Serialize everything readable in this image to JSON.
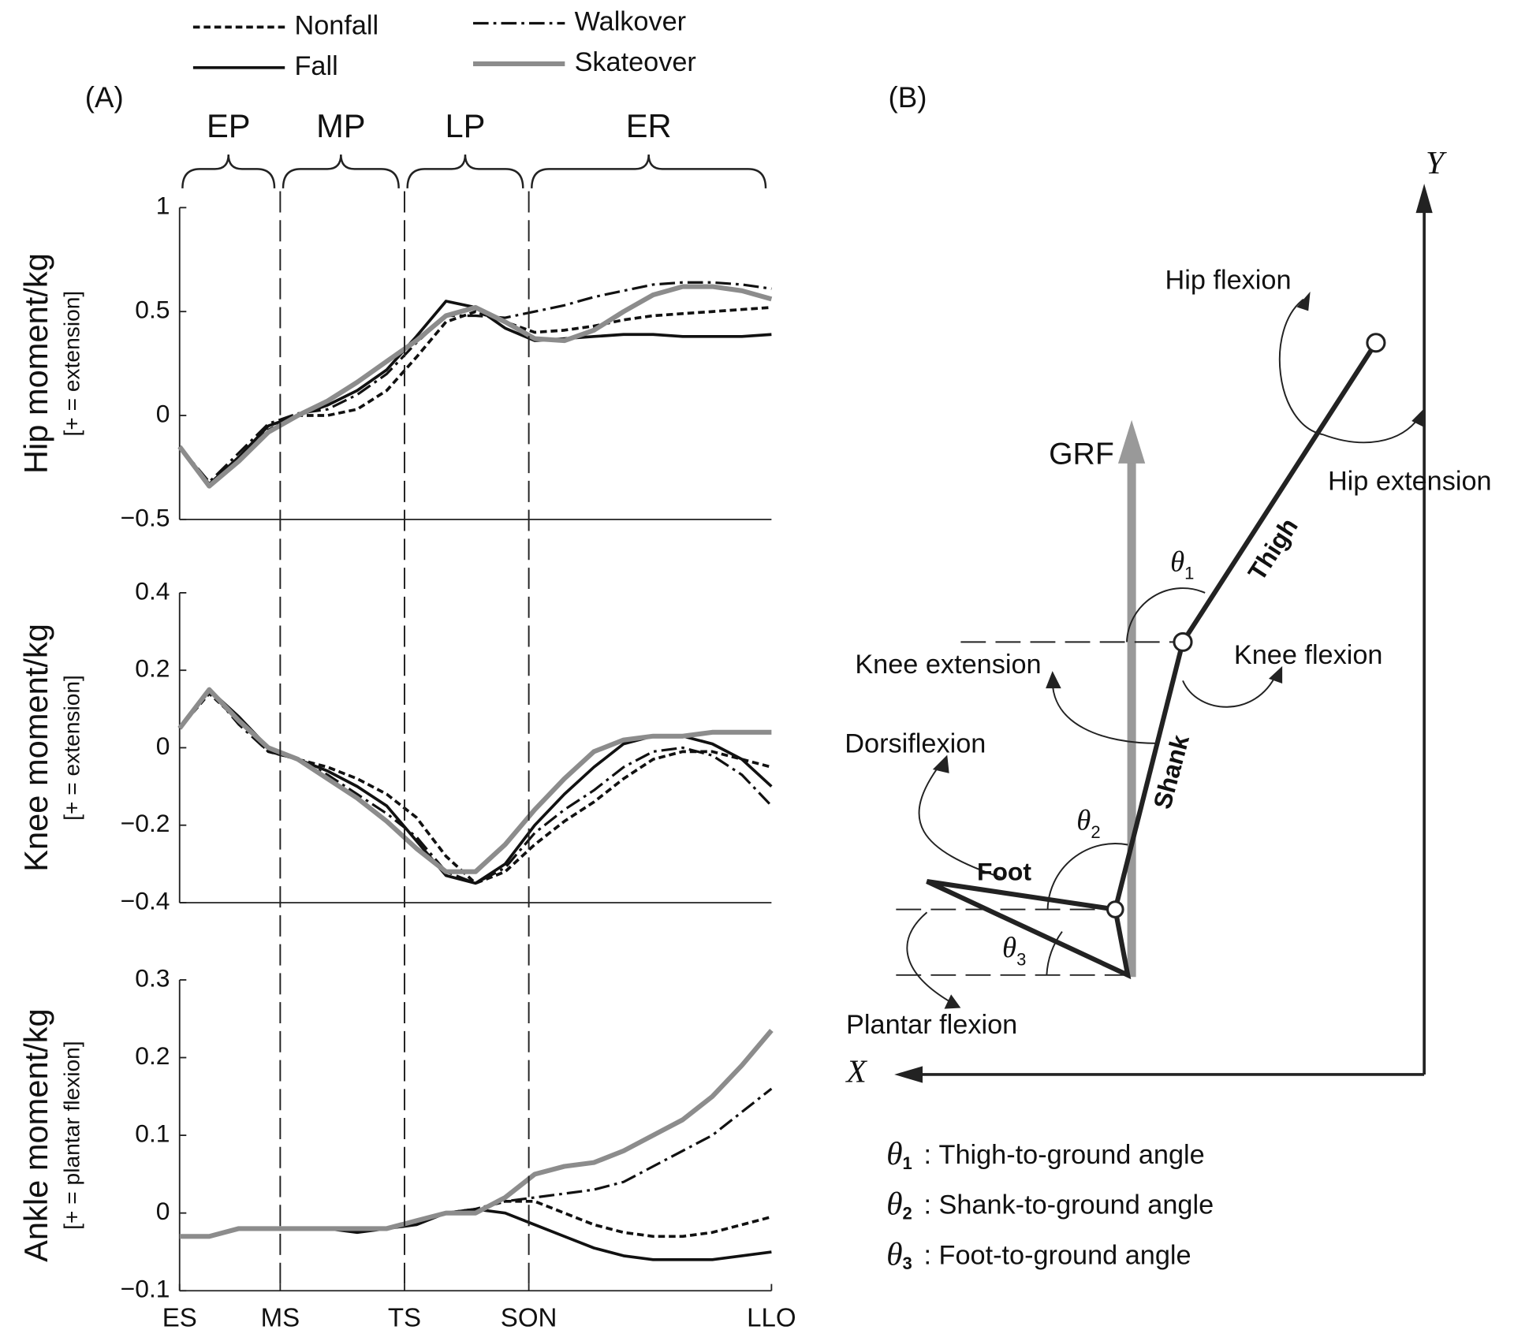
{
  "panels": [
    "(A)",
    "(B)"
  ],
  "phases": [
    "EP",
    "MP",
    "LP",
    "ER"
  ],
  "chart_data": [
    {
      "type": "line",
      "ylabel": "Hip moment/kg",
      "ylabel_note": "[+ = extension]",
      "x": [
        0,
        5,
        10,
        15,
        20,
        25,
        30,
        35,
        40,
        45,
        50,
        55,
        60,
        65,
        70,
        75,
        80,
        85,
        90,
        95,
        100
      ],
      "xlim": [
        0,
        100
      ],
      "ylim": [
        -0.5,
        1
      ],
      "yticks": [
        {
          "value": -0.5,
          "label": "−0.5"
        },
        0,
        0.5,
        1
      ],
      "series": [
        {
          "name": "Nonfall",
          "color": "#111111",
          "dash": "dashed",
          "values": [
            -0.15,
            -0.33,
            -0.22,
            -0.07,
            0.0,
            0.0,
            0.03,
            0.12,
            0.28,
            0.45,
            0.5,
            0.45,
            0.4,
            0.41,
            0.43,
            0.46,
            0.48,
            0.49,
            0.5,
            0.51,
            0.52
          ]
        },
        {
          "name": "Fall",
          "color": "#111111",
          "dash": "solid",
          "values": [
            -0.15,
            -0.33,
            -0.2,
            -0.05,
            0.0,
            0.05,
            0.12,
            0.22,
            0.38,
            0.55,
            0.52,
            0.42,
            0.36,
            0.37,
            0.38,
            0.39,
            0.39,
            0.38,
            0.38,
            0.38,
            0.39
          ]
        },
        {
          "name": "Walkover",
          "color": "#111111",
          "dash": "dashdot",
          "values": [
            -0.15,
            -0.32,
            -0.18,
            -0.04,
            0.01,
            0.03,
            0.1,
            0.2,
            0.35,
            0.48,
            0.48,
            0.47,
            0.5,
            0.53,
            0.57,
            0.6,
            0.63,
            0.64,
            0.64,
            0.63,
            0.61
          ]
        },
        {
          "name": "Skateover",
          "color": "#8c8c8c",
          "dash": "thick",
          "values": [
            -0.15,
            -0.34,
            -0.22,
            -0.08,
            0.0,
            0.07,
            0.16,
            0.26,
            0.36,
            0.48,
            0.52,
            0.45,
            0.37,
            0.36,
            0.41,
            0.5,
            0.58,
            0.62,
            0.62,
            0.6,
            0.56
          ]
        }
      ]
    },
    {
      "type": "line",
      "ylabel": "Knee moment/kg",
      "ylabel_note": "[+ = extension]",
      "x": [
        0,
        5,
        10,
        15,
        20,
        25,
        30,
        35,
        40,
        45,
        50,
        55,
        60,
        65,
        70,
        75,
        80,
        85,
        90,
        95,
        100
      ],
      "xlim": [
        0,
        100
      ],
      "ylim": [
        -0.4,
        0.4
      ],
      "yticks": [
        {
          "value": -0.4,
          "label": "−0.4"
        },
        {
          "value": -0.2,
          "label": "−0.2"
        },
        0,
        0.2,
        0.4
      ],
      "series": [
        {
          "name": "Nonfall",
          "color": "#111111",
          "dash": "dashed",
          "values": [
            0.05,
            0.14,
            0.07,
            -0.01,
            -0.03,
            -0.05,
            -0.08,
            -0.12,
            -0.18,
            -0.28,
            -0.35,
            -0.32,
            -0.25,
            -0.19,
            -0.14,
            -0.08,
            -0.03,
            -0.01,
            -0.01,
            -0.03,
            -0.05
          ]
        },
        {
          "name": "Fall",
          "color": "#111111",
          "dash": "solid",
          "values": [
            0.05,
            0.15,
            0.08,
            0.0,
            -0.03,
            -0.06,
            -0.1,
            -0.15,
            -0.24,
            -0.33,
            -0.35,
            -0.3,
            -0.2,
            -0.12,
            -0.05,
            0.01,
            0.03,
            0.03,
            0.01,
            -0.03,
            -0.1
          ]
        },
        {
          "name": "Walkover",
          "color": "#111111",
          "dash": "dashdot",
          "values": [
            0.05,
            0.15,
            0.06,
            -0.01,
            -0.03,
            -0.07,
            -0.12,
            -0.17,
            -0.23,
            -0.32,
            -0.35,
            -0.31,
            -0.22,
            -0.16,
            -0.11,
            -0.05,
            -0.01,
            0.0,
            -0.02,
            -0.07,
            -0.15
          ]
        },
        {
          "name": "Skateover",
          "color": "#8c8c8c",
          "dash": "thick",
          "values": [
            0.05,
            0.15,
            0.07,
            0.0,
            -0.03,
            -0.08,
            -0.13,
            -0.19,
            -0.26,
            -0.32,
            -0.32,
            -0.25,
            -0.16,
            -0.08,
            -0.01,
            0.02,
            0.03,
            0.03,
            0.04,
            0.04,
            0.04
          ]
        }
      ]
    },
    {
      "type": "line",
      "ylabel": "Ankle moment/kg",
      "ylabel_note": "[+ = plantar flexion]",
      "x": [
        0,
        5,
        10,
        15,
        20,
        25,
        30,
        35,
        40,
        45,
        50,
        55,
        60,
        65,
        70,
        75,
        80,
        85,
        90,
        95,
        100
      ],
      "xlim": [
        0,
        100
      ],
      "ylim": [
        -0.1,
        0.3
      ],
      "xticks": [
        {
          "value": 0,
          "label": "ES"
        },
        {
          "value": 17,
          "label": "MS"
        },
        {
          "value": 38,
          "label": "TS"
        },
        {
          "value": 59,
          "label": "SON"
        },
        {
          "value": 100,
          "label": "LLO"
        }
      ],
      "yticks": [
        {
          "value": -0.1,
          "label": "−0.1"
        },
        0,
        0.1,
        0.2,
        0.3
      ],
      "series": [
        {
          "name": "Nonfall",
          "color": "#111111",
          "dash": "dashed",
          "values": [
            -0.03,
            -0.03,
            -0.02,
            -0.02,
            -0.02,
            -0.02,
            -0.02,
            -0.02,
            -0.01,
            0.0,
            0.005,
            0.015,
            0.015,
            0.0,
            -0.015,
            -0.025,
            -0.03,
            -0.03,
            -0.025,
            -0.015,
            -0.005
          ]
        },
        {
          "name": "Fall",
          "color": "#111111",
          "dash": "solid",
          "values": [
            -0.03,
            -0.03,
            -0.02,
            -0.02,
            -0.02,
            -0.02,
            -0.025,
            -0.02,
            -0.015,
            0.0,
            0.005,
            0.0,
            -0.015,
            -0.03,
            -0.045,
            -0.055,
            -0.06,
            -0.06,
            -0.06,
            -0.055,
            -0.05
          ]
        },
        {
          "name": "Walkover",
          "color": "#111111",
          "dash": "dashdot",
          "values": [
            -0.03,
            -0.03,
            -0.02,
            -0.02,
            -0.02,
            -0.02,
            -0.02,
            -0.02,
            -0.01,
            0.0,
            0.005,
            0.015,
            0.02,
            0.025,
            0.03,
            0.04,
            0.06,
            0.08,
            0.1,
            0.13,
            0.16
          ]
        },
        {
          "name": "Skateover",
          "color": "#8c8c8c",
          "dash": "thick",
          "values": [
            -0.03,
            -0.03,
            -0.02,
            -0.02,
            -0.02,
            -0.02,
            -0.02,
            -0.02,
            -0.01,
            0.0,
            0.0,
            0.02,
            0.05,
            0.06,
            0.065,
            0.08,
            0.1,
            0.12,
            0.15,
            0.19,
            0.235
          ]
        }
      ]
    }
  ],
  "diagram": {
    "axes": {
      "x": "X",
      "y": "Y"
    },
    "labels": {
      "grf": "GRF",
      "hip_flexion": "Hip flexion",
      "hip_extension": "Hip extension",
      "thigh": "Thigh",
      "knee_extension": "Knee extension",
      "knee_flexion": "Knee flexion",
      "shank": "Shank",
      "dorsiflexion": "Dorsiflexion",
      "foot": "Foot",
      "plantar_flexion": "Plantar flexion"
    },
    "angles": [
      {
        "symbol": "θ",
        "sub": "1",
        "description": ": Thigh-to-ground angle"
      },
      {
        "symbol": "θ",
        "sub": "2",
        "description": ": Shank-to-ground angle"
      },
      {
        "symbol": "θ",
        "sub": "3",
        "description": ": Foot-to-ground angle"
      }
    ]
  }
}
